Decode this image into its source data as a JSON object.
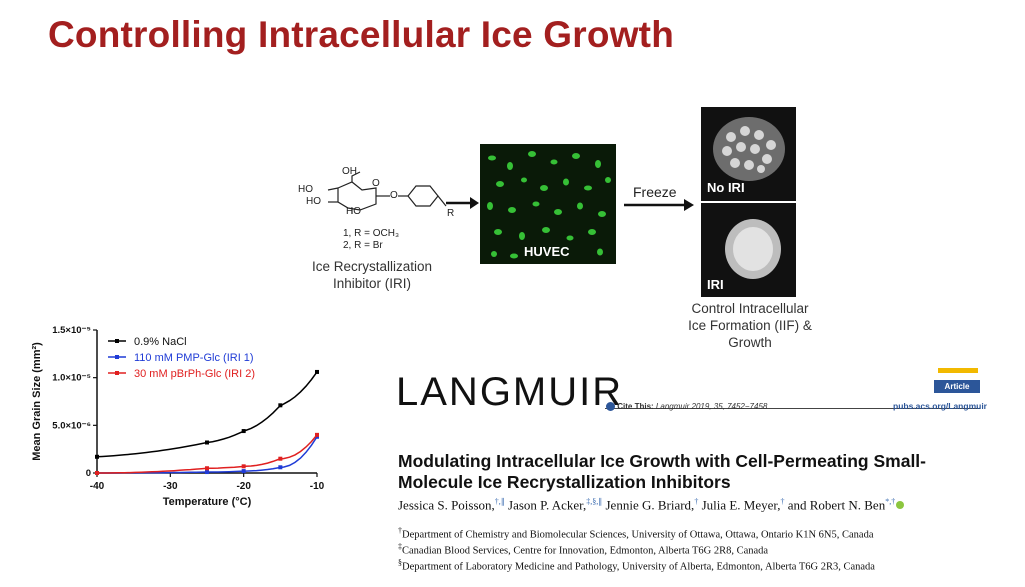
{
  "slide": {
    "title": "Controlling Intracellular Ice Growth"
  },
  "schematic": {
    "molecule": {
      "oh_top": "OH",
      "ho_1": "HO",
      "ho_2": "HO",
      "ho_3": "HO",
      "o_ring": "O",
      "o_link": "O",
      "r_group": "R",
      "compound1": "1, R = OCH₃",
      "compound2": "2, R = Br"
    },
    "iri_caption_line1": "Ice Recrystallization",
    "iri_caption_line2": "Inhibitor (IRI)",
    "huvec_label": "HUVEC",
    "freeze_label": "Freeze",
    "no_iri_label": "No IRI",
    "iri_label": "IRI",
    "outcome_line1": "Control Intracellular",
    "outcome_line2": "Ice Formation (IIF) &",
    "outcome_line3": "Growth"
  },
  "chart_data": {
    "type": "line",
    "xlabel": "Temperature (°C)",
    "ylabel": "Mean Grain Size (mm²)",
    "x_ticks": [
      "-40",
      "-30",
      "-20",
      "-10"
    ],
    "y_ticks": [
      "0",
      "5.0×10⁻⁶",
      "1.0×10⁻⁵",
      "1.5×10⁻⁵"
    ],
    "xlim": [
      -40,
      -10
    ],
    "ylim": [
      0,
      1.5e-05
    ],
    "legend_position": "top-left",
    "series": [
      {
        "name": "0.9% NaCl",
        "color": "#000000",
        "x": [
          -40,
          -25,
          -20,
          -15,
          -10
        ],
        "y": [
          1.7e-06,
          3.2e-06,
          4.4e-06,
          7.1e-06,
          1.06e-05
        ]
      },
      {
        "name": "110 mM PMP-Glc (IRI 1)",
        "color": "#1f3bd6",
        "x": [
          -40,
          -25,
          -20,
          -15,
          -10
        ],
        "y": [
          0.0,
          1e-07,
          2e-07,
          6e-07,
          3.8e-06
        ]
      },
      {
        "name": "30 mM pBrPh-Glc (IRI 2)",
        "color": "#e02020",
        "x": [
          -40,
          -25,
          -20,
          -15,
          -10
        ],
        "y": [
          0.0,
          5e-07,
          7e-07,
          1.5e-06,
          4e-06
        ]
      }
    ]
  },
  "article": {
    "journal": "LANGMUIR",
    "cite_prefix": "Cite This:",
    "cite_text": "Langmuir 2019, 35, 7452−7458",
    "badge": "Article",
    "url": "pubs.acs.org/Langmuir",
    "title_line1": "Modulating Intracellular Ice Growth with Cell-Permeating Small-",
    "title_line2": "Molecule Ice Recrystallization Inhibitors",
    "authors": [
      {
        "name": "Jessica S. Poisson,",
        "sup": "†,∥"
      },
      {
        "name": "Jason P. Acker,",
        "sup": "‡,§,∥"
      },
      {
        "name": "Jennie G. Briard,",
        "sup": "†"
      },
      {
        "name": "Julia E. Meyer,",
        "sup": "†"
      },
      {
        "name": "and Robert N. Ben",
        "sup": "*,†"
      }
    ],
    "aff1_mark": "†",
    "aff1": "Department of Chemistry and Biomolecular Sciences, University of Ottawa, Ottawa, Ontario K1N 6N5, Canada",
    "aff2_mark": "‡",
    "aff2": "Canadian Blood Services, Centre for Innovation, Edmonton, Alberta T6G 2R8, Canada",
    "aff3_mark": "§",
    "aff3": "Department of Laboratory Medicine and Pathology, University of Alberta, Edmonton, Alberta T6G 2R3, Canada"
  }
}
